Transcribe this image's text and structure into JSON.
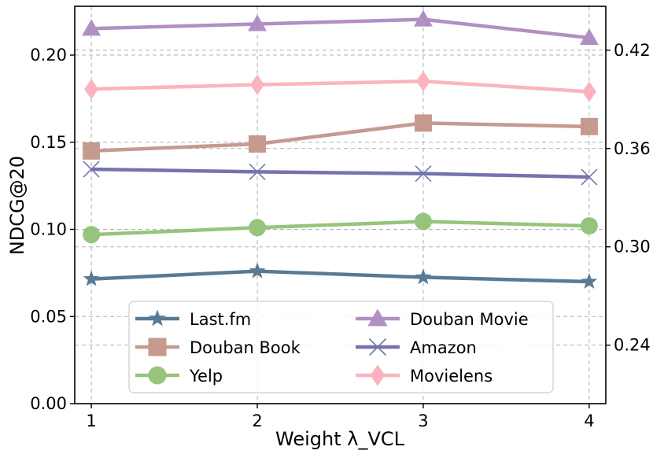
{
  "chart_data": {
    "type": "line",
    "title": "",
    "xlabel": "Weight λ_VCL",
    "ylabel": "NDCG@20",
    "x": [
      1,
      2,
      3,
      4
    ],
    "x_tick_labels": [
      "1",
      "2",
      "3",
      "4"
    ],
    "xlim": [
      0.9,
      4.1
    ],
    "ylim": [
      0.0,
      0.228
    ],
    "y_ticks": [
      0.0,
      0.05,
      0.1,
      0.15,
      0.2
    ],
    "y_tick_labels": [
      "0.00",
      "0.05",
      "0.10",
      "0.15",
      "0.20"
    ],
    "secondary_ylim": [
      0.2043,
      0.4468
    ],
    "secondary_y_ticks": [
      0.24,
      0.3,
      0.36,
      0.42
    ],
    "secondary_y_tick_labels": [
      "0.24",
      "0.30",
      "0.36",
      "0.42"
    ],
    "grid": true,
    "legend_position": "lower-center",
    "series": [
      {
        "name": "Last.fm",
        "axis": "left",
        "values": [
          0.0715,
          0.076,
          0.0725,
          0.07
        ],
        "color": "#597a94",
        "marker": "star"
      },
      {
        "name": "Douban Book",
        "axis": "left",
        "values": [
          0.145,
          0.149,
          0.161,
          0.159
        ],
        "color": "#c79a8f",
        "marker": "square"
      },
      {
        "name": "Yelp",
        "axis": "left",
        "values": [
          0.097,
          0.101,
          0.1045,
          0.102
        ],
        "color": "#97c47d",
        "marker": "circle"
      },
      {
        "name": "Douban Movie",
        "axis": "right",
        "values": [
          0.4332,
          0.436,
          0.4388,
          0.4276
        ],
        "color": "#b28fc3",
        "marker": "triangle"
      },
      {
        "name": "Amazon",
        "axis": "left",
        "values": [
          0.1345,
          0.133,
          0.132,
          0.13
        ],
        "color": "#7474ad",
        "marker": "x"
      },
      {
        "name": "Movielens",
        "axis": "left",
        "values": [
          0.1805,
          0.183,
          0.185,
          0.179
        ],
        "color": "#fbb4bf",
        "marker": "diamond"
      }
    ]
  }
}
